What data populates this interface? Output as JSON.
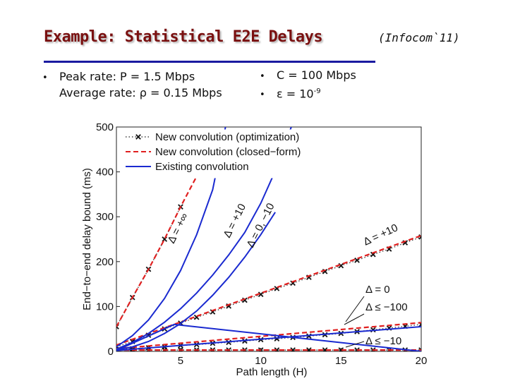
{
  "slide": {
    "title": "Example: Statistical E2E Delays",
    "subtitle": "(Infocom`11)",
    "bullets_left": [
      "Peak rate: P = 1.5 Mbps",
      "Average rate: ρ = 0.15 Mbps"
    ],
    "bullets_right": [
      {
        "text": "C = 100 Mbps",
        "sup": ""
      },
      {
        "text": "ε = 10",
        "sup": "-9"
      }
    ],
    "bullet_glyph": "•"
  },
  "chart_data": {
    "type": "line",
    "xlabel": "Path length (H)",
    "ylabel": "End−to−end delay bound (ms)",
    "xlim": [
      1,
      20
    ],
    "ylim": [
      0,
      500
    ],
    "x_ticks": [
      5,
      10,
      15,
      20
    ],
    "y_ticks": [
      0,
      100,
      200,
      300,
      400,
      500
    ],
    "grid": false,
    "legend_position": "top-left",
    "legend": [
      {
        "label": "New convolution (optimization)",
        "color": "#444444",
        "style": "dotted-x"
      },
      {
        "label": "New convolution (closed−form)",
        "color": "#e02020",
        "style": "dashed"
      },
      {
        "label": "Existing convolution",
        "color": "#1a2ad0",
        "style": "solid"
      }
    ],
    "annotations": [
      "Δ = +∞",
      "Δ = +10",
      "Δ = 0, −10",
      "Δ = +10",
      "Δ = 0",
      "Δ ≤ −100",
      "Δ ≤ −10"
    ],
    "series": [
      {
        "legend_index": 0,
        "x": [
          1,
          2,
          3,
          4,
          5
        ],
        "y": [
          55,
          120,
          183,
          250,
          322
        ]
      },
      {
        "legend_index": 1,
        "x": [
          1,
          2,
          3,
          4,
          5,
          6
        ],
        "y": [
          55,
          120,
          183,
          250,
          322,
          390
        ]
      },
      {
        "legend_index": 0,
        "x": [
          1,
          2,
          3,
          4,
          5,
          6,
          7,
          8,
          9,
          10,
          11,
          12,
          13,
          14,
          15,
          16,
          17,
          18,
          19,
          20
        ],
        "y": [
          10,
          22,
          36,
          50,
          63,
          76,
          88,
          101,
          114,
          127,
          140,
          152,
          165,
          178,
          191,
          203,
          216,
          228,
          242,
          255
        ]
      },
      {
        "legend_index": 1,
        "x": [
          1,
          20
        ],
        "y": [
          14,
          258
        ]
      },
      {
        "legend_index": 0,
        "x": [
          1,
          2,
          3,
          4,
          5,
          6,
          7,
          8,
          9,
          10,
          11,
          12,
          13,
          14,
          15,
          16,
          17,
          18,
          19,
          20
        ],
        "y": [
          4,
          6,
          8,
          10,
          13,
          15,
          18,
          20,
          23,
          26,
          28,
          31,
          34,
          37,
          40,
          44,
          48,
          52,
          56,
          60
        ]
      },
      {
        "legend_index": 1,
        "x": [
          1,
          20
        ],
        "y": [
          6,
          64
        ]
      },
      {
        "legend_index": 0,
        "x": [
          1,
          2,
          3,
          4,
          5,
          6,
          7,
          8,
          9,
          10,
          11,
          12,
          13,
          14,
          15,
          16,
          17,
          18,
          19,
          20
        ],
        "y": [
          3,
          3,
          3,
          3,
          3,
          3,
          3,
          3,
          3,
          3,
          3,
          3,
          3,
          3,
          3,
          3,
          3,
          3,
          3,
          3
        ]
      },
      {
        "legend_index": 1,
        "x": [
          1,
          20
        ],
        "y": [
          3,
          3
        ]
      },
      {
        "legend_index": 2,
        "x": [
          1,
          2,
          3,
          4,
          5,
          6,
          7,
          7.8
        ],
        "y": [
          10,
          35,
          70,
          118,
          180,
          260,
          360,
          500
        ]
      },
      {
        "legend_index": 2,
        "x": [
          1,
          2,
          3,
          4,
          5,
          6,
          7,
          8,
          9,
          10,
          11,
          11.9
        ],
        "y": [
          5,
          20,
          40,
          65,
          95,
          130,
          170,
          215,
          265,
          330,
          410,
          500
        ]
      },
      {
        "legend_index": 2,
        "x": [
          1,
          2,
          3,
          4,
          5,
          6,
          7,
          8,
          9,
          10,
          10.9
        ],
        "y": [
          3,
          10,
          22,
          40,
          62,
          90,
          125,
          165,
          210,
          260,
          310
        ]
      },
      {
        "legend_index": 2,
        "x": [
          1,
          4.6,
          20
        ],
        "y": [
          2,
          60,
          0
        ]
      },
      {
        "legend_index": 2,
        "x": [
          1,
          20
        ],
        "y": [
          2,
          55
        ]
      }
    ]
  }
}
